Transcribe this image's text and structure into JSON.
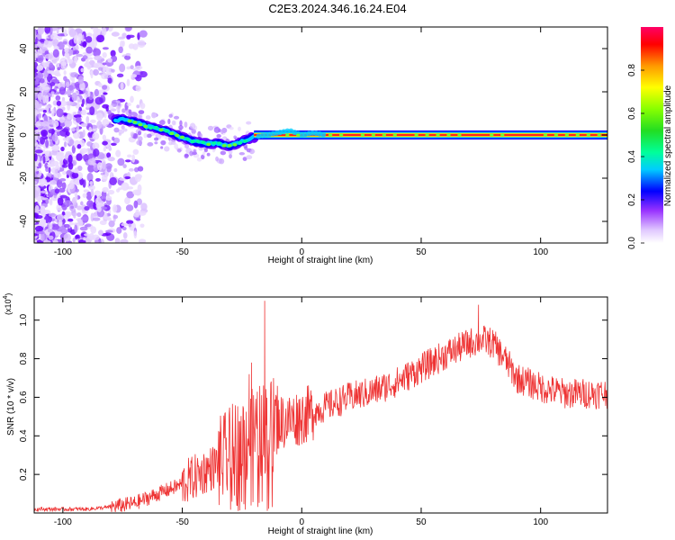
{
  "title": "C2E3.2024.346.16.24.E04",
  "chart_data": [
    {
      "type": "heatmap",
      "xlabel": "Height of straight line (km)",
      "ylabel": "Frequency (Hz)",
      "xlim": [
        -112,
        128
      ],
      "ylim": [
        -50,
        50
      ],
      "x_ticks": [
        -100,
        -50,
        0,
        50,
        100
      ],
      "y_ticks": [
        -40,
        -20,
        0,
        20,
        40
      ],
      "colorbar": {
        "label": "Normalized spectral amplitude",
        "range": [
          0,
          1
        ],
        "ticks": [
          "0.0",
          "0.2",
          "0.4",
          "0.6",
          "0.8"
        ]
      },
      "ridge_profile": {
        "x": [
          -75,
          -70,
          -65,
          -60,
          -55,
          -50,
          -45,
          -40,
          -35,
          -30,
          -25,
          -20,
          -15,
          -10,
          -5,
          0,
          5,
          10,
          20,
          40,
          60,
          80,
          100,
          128
        ],
        "frequency_hz": [
          7,
          6,
          4,
          3,
          1,
          -1,
          -3,
          -4,
          -4,
          -5,
          -3,
          -1,
          0,
          1,
          2,
          0,
          1,
          0,
          0,
          0,
          0,
          0,
          0,
          0
        ]
      }
    },
    {
      "type": "line",
      "xlabel": "Height of straight line (km)",
      "ylabel": "SNR (10 * v/v)",
      "y_multiplier_label": "(x10",
      "y_multiplier_exp": "4",
      "y_multiplier_close": ")",
      "xlim": [
        -112,
        128
      ],
      "ylim": [
        0,
        1.12
      ],
      "x_ticks": [
        -100,
        -50,
        0,
        50,
        100
      ],
      "y_ticks": [
        "0.2",
        "0.4",
        "0.6",
        "0.8",
        "1.0"
      ],
      "color": "#ee3333",
      "envelope": {
        "x": [
          -112,
          -90,
          -80,
          -70,
          -60,
          -50,
          -40,
          -35,
          -30,
          -25,
          -20,
          -15,
          -10,
          -5,
          0,
          10,
          20,
          30,
          40,
          50,
          60,
          70,
          75,
          80,
          85,
          90,
          100,
          110,
          120,
          128
        ],
        "y": [
          0.02,
          0.02,
          0.03,
          0.05,
          0.1,
          0.15,
          0.22,
          0.25,
          0.3,
          0.38,
          0.4,
          0.45,
          0.47,
          0.48,
          0.5,
          0.55,
          0.6,
          0.63,
          0.68,
          0.75,
          0.82,
          0.88,
          0.9,
          0.88,
          0.8,
          0.7,
          0.65,
          0.62,
          0.62,
          0.62
        ]
      },
      "spikes": [
        {
          "x": -15.5,
          "y": 1.1
        },
        {
          "x": -21,
          "y": 0.78
        },
        {
          "x": -22,
          "y": 0.72
        },
        {
          "x": 74,
          "y": 1.08
        }
      ]
    }
  ]
}
